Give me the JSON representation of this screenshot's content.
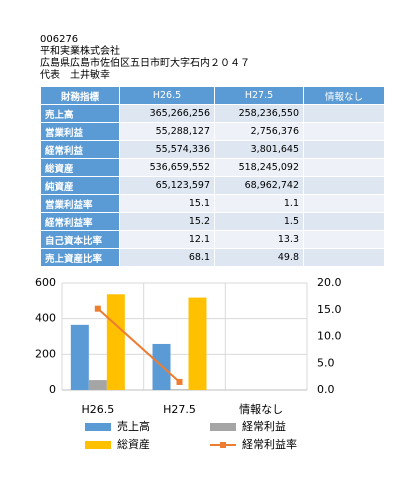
{
  "header": {
    "code": "006276",
    "company": "平和実業株式会社",
    "address": "広島県広島市佐伯区五日市町大字石内２０４７",
    "representative": "代表　土井敏幸"
  },
  "table": {
    "header": [
      "財務指標",
      "H26.5",
      "H27.5",
      "情報なし"
    ],
    "rows": [
      [
        "売上高",
        "365,266,256",
        "258,236,550",
        ""
      ],
      [
        "営業利益",
        "55,288,127",
        "2,756,376",
        ""
      ],
      [
        "経常利益",
        "55,574,336",
        "3,801,645",
        ""
      ],
      [
        "総資産",
        "536,659,552",
        "518,245,092",
        ""
      ],
      [
        "純資産",
        "65,123,597",
        "68,962,742",
        ""
      ],
      [
        "営業利益率",
        "15.1",
        "1.1",
        ""
      ],
      [
        "経常利益率",
        "15.2",
        "1.5",
        ""
      ],
      [
        "自己資本比率",
        "12.1",
        "13.3",
        ""
      ],
      [
        "売上資産比率",
        "68.1",
        "49.8",
        ""
      ]
    ]
  },
  "chart_data": {
    "type": "bar",
    "categories": [
      "H26.5",
      "H27.5",
      "情報なし"
    ],
    "series": [
      {
        "name": "売上高",
        "color": "#5b9bd5",
        "values": [
          365.3,
          258.2,
          null
        ]
      },
      {
        "name": "経常利益",
        "color": "#a5a5a5",
        "values": [
          55.6,
          3.8,
          null
        ]
      },
      {
        "name": "総資産",
        "color": "#ffc000",
        "values": [
          536.7,
          518.2,
          null
        ]
      },
      {
        "name": "経常利益率",
        "color": "#ed7d31",
        "type": "line",
        "axis": "y2",
        "values": [
          15.2,
          1.5,
          null
        ]
      }
    ],
    "ylim": [
      0,
      600
    ],
    "yticks": [
      0,
      200,
      400,
      600
    ],
    "y2lim": [
      0,
      20
    ],
    "y2ticks": [
      {
        "value": 0,
        "label": "0.0"
      },
      {
        "value": 5,
        "label": "5.0"
      },
      {
        "value": 10,
        "label": "10.0"
      },
      {
        "value": 15,
        "label": "15.0"
      },
      {
        "value": 20,
        "label": "20.0"
      }
    ],
    "grid": true
  }
}
